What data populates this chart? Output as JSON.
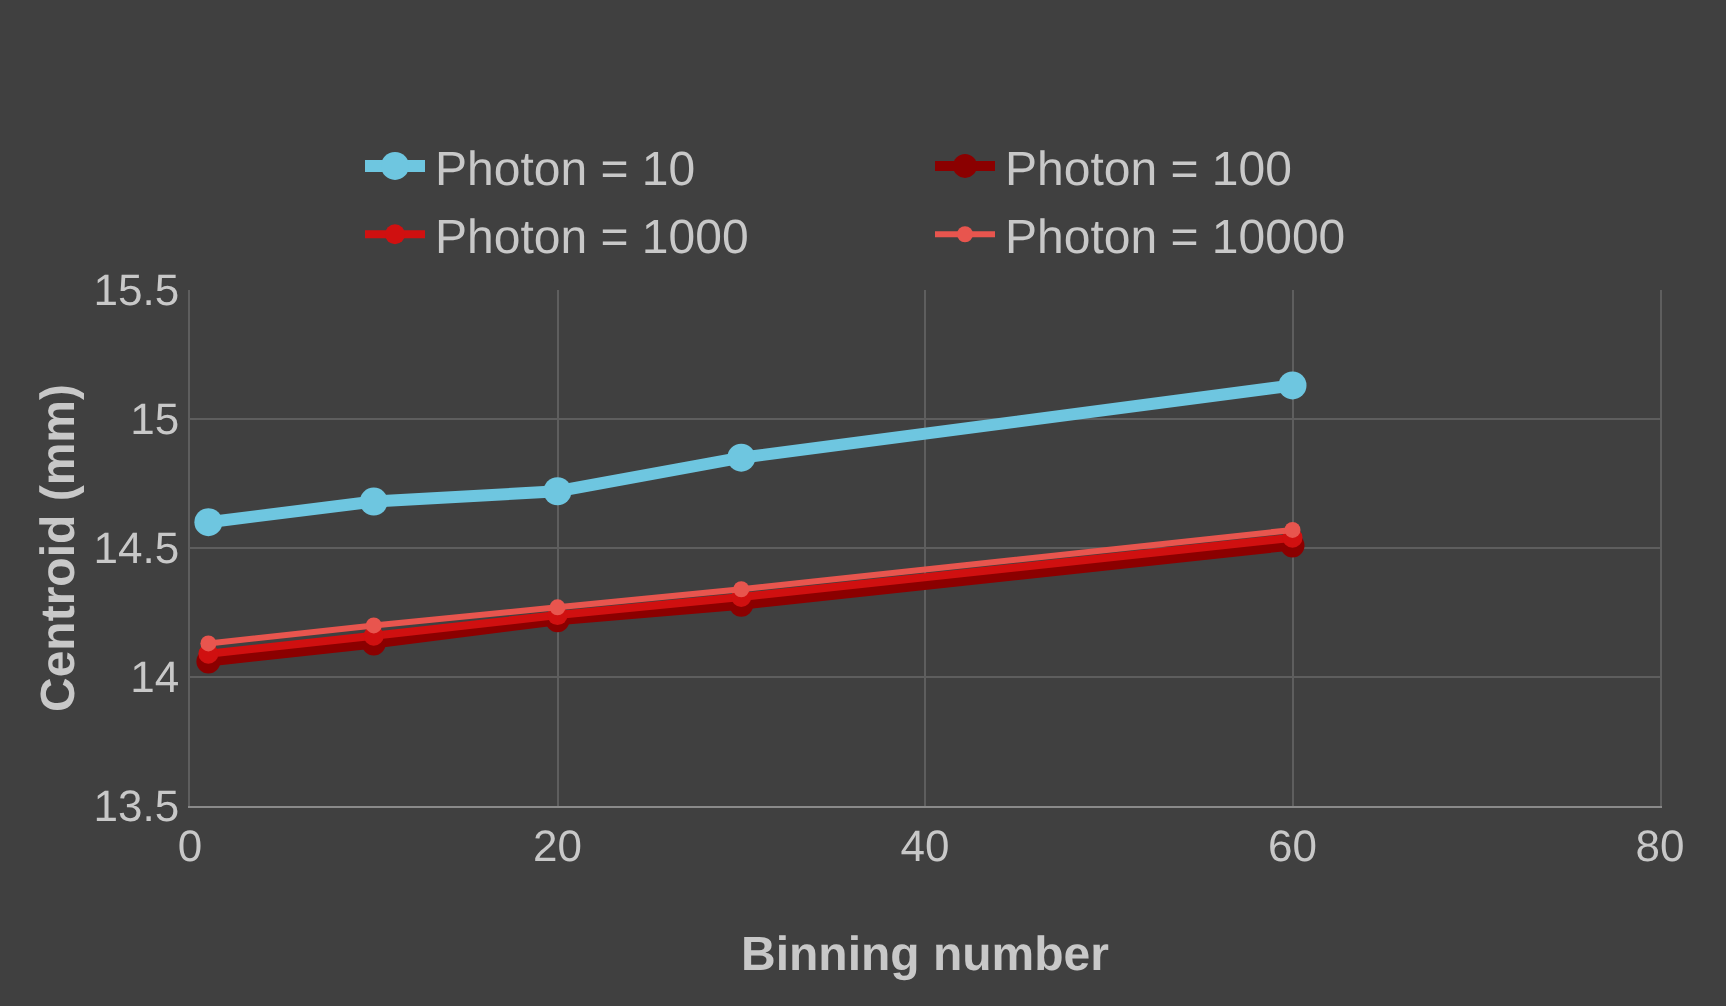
{
  "chart_data": {
    "type": "line",
    "xlabel": "Binning number",
    "ylabel": "Centroid (mm)",
    "x": [
      1,
      10,
      20,
      30,
      60
    ],
    "series": [
      {
        "name": "Photon = 10",
        "color": "#6ec6e0",
        "values": [
          14.6,
          14.68,
          14.72,
          14.85,
          15.13
        ]
      },
      {
        "name": "Photon = 100",
        "color": "#8b0000",
        "values": [
          14.06,
          14.13,
          14.22,
          14.28,
          14.51
        ]
      },
      {
        "name": "Photon = 1000",
        "color": "#d01010",
        "values": [
          14.09,
          14.16,
          14.24,
          14.31,
          14.54
        ]
      },
      {
        "name": "Photon = 10000",
        "color": "#e8554e",
        "values": [
          14.13,
          14.2,
          14.27,
          14.34,
          14.57
        ]
      }
    ],
    "xlim": [
      0,
      80
    ],
    "xticks": [
      0,
      20,
      40,
      60,
      80
    ],
    "ylim": [
      13.5,
      15.5
    ],
    "yticks": [
      13.5,
      14,
      14.5,
      15,
      15.5
    ],
    "grid": true,
    "legend": "top",
    "marker": "circle",
    "line_style": "solid"
  }
}
